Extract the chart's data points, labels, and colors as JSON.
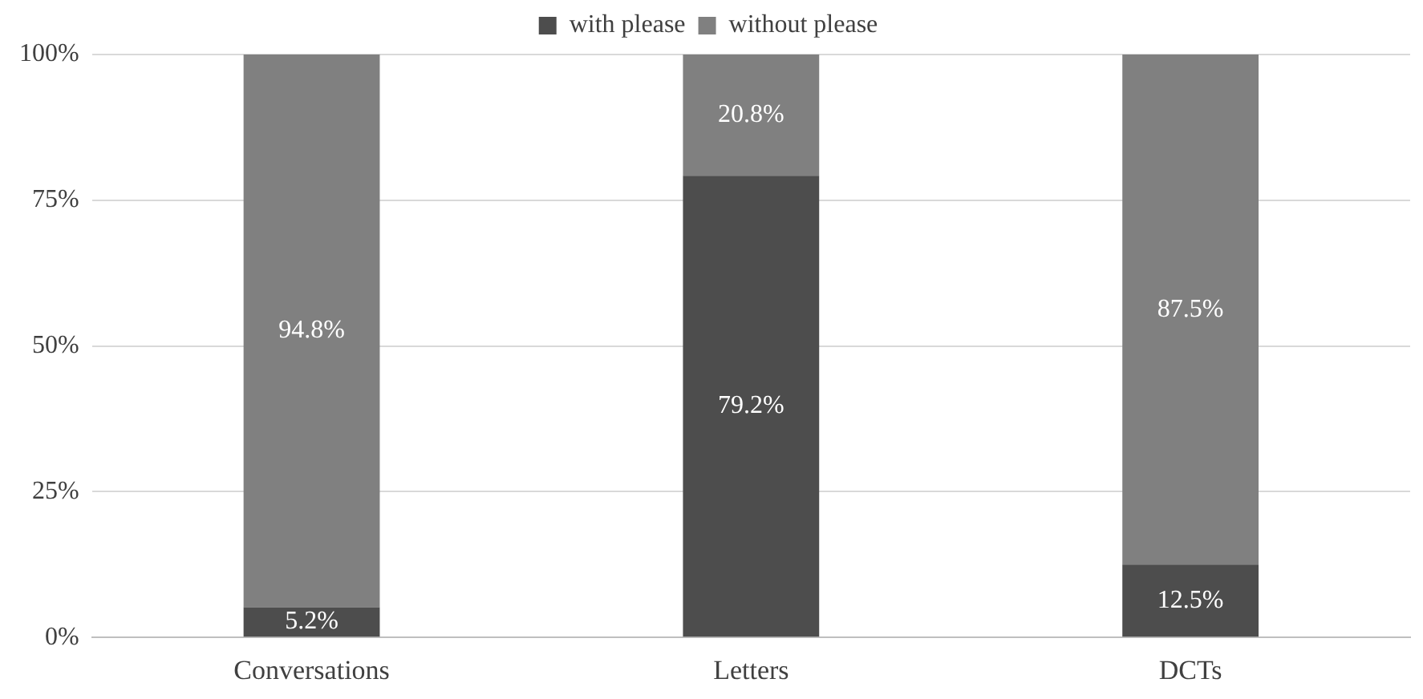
{
  "chart_data": {
    "type": "bar",
    "stacked": true,
    "categories": [
      "Conversations",
      "Letters",
      "DCTs"
    ],
    "series": [
      {
        "name": "with please",
        "color": "#4d4d4d",
        "values": [
          5.2,
          79.2,
          12.5
        ],
        "value_labels": [
          "5.2%",
          "79.2%",
          "12.5%"
        ]
      },
      {
        "name": "without please",
        "color": "#808080",
        "values": [
          94.8,
          20.8,
          87.5
        ],
        "value_labels": [
          "94.8%",
          "20.8%",
          "87.5%"
        ]
      }
    ],
    "ylim": [
      0,
      100
    ],
    "yticks": [
      {
        "value": 0,
        "label": "0%"
      },
      {
        "value": 25,
        "label": "25%"
      },
      {
        "value": 50,
        "label": "50%"
      },
      {
        "value": 75,
        "label": "75%"
      },
      {
        "value": 100,
        "label": "100%"
      }
    ],
    "grid": "y",
    "legend": "top"
  }
}
